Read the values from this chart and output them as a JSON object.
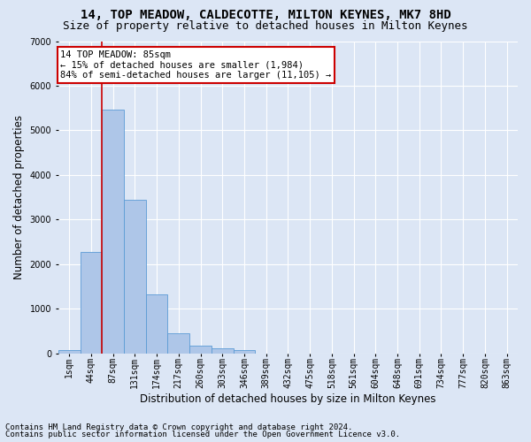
{
  "title": "14, TOP MEADOW, CALDECOTTE, MILTON KEYNES, MK7 8HD",
  "subtitle": "Size of property relative to detached houses in Milton Keynes",
  "xlabel": "Distribution of detached houses by size in Milton Keynes",
  "ylabel": "Number of detached properties",
  "annotation_line1": "14 TOP MEADOW: 85sqm",
  "annotation_line2": "← 15% of detached houses are smaller (1,984)",
  "annotation_line3": "84% of semi-detached houses are larger (11,105) →",
  "footer_line1": "Contains HM Land Registry data © Crown copyright and database right 2024.",
  "footer_line2": "Contains public sector information licensed under the Open Government Licence v3.0.",
  "bar_labels": [
    "1sqm",
    "44sqm",
    "87sqm",
    "131sqm",
    "174sqm",
    "217sqm",
    "260sqm",
    "303sqm",
    "346sqm",
    "389sqm",
    "432sqm",
    "475sqm",
    "518sqm",
    "561sqm",
    "604sqm",
    "648sqm",
    "691sqm",
    "734sqm",
    "777sqm",
    "820sqm",
    "863sqm"
  ],
  "bar_values": [
    70,
    2280,
    5460,
    3440,
    1310,
    440,
    165,
    100,
    65,
    0,
    0,
    0,
    0,
    0,
    0,
    0,
    0,
    0,
    0,
    0,
    0
  ],
  "bar_color": "#aec6e8",
  "bar_edge_color": "#5b9bd5",
  "vline_x": 1.5,
  "vline_color": "#cc0000",
  "ylim": [
    0,
    7000
  ],
  "yticks": [
    0,
    1000,
    2000,
    3000,
    4000,
    5000,
    6000,
    7000
  ],
  "background_color": "#dce6f5",
  "grid_color": "#ffffff",
  "annotation_box_color": "#ffffff",
  "annotation_box_edge": "#cc0000",
  "title_fontsize": 10,
  "subtitle_fontsize": 9,
  "axis_label_fontsize": 8.5,
  "tick_fontsize": 7,
  "footer_fontsize": 6.5,
  "annotation_fontsize": 7.5
}
